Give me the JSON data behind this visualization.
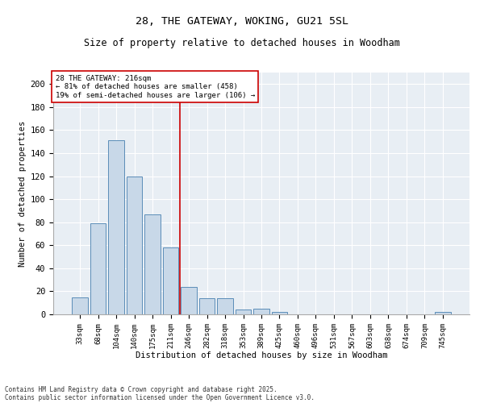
{
  "title": "28, THE GATEWAY, WOKING, GU21 5SL",
  "subtitle": "Size of property relative to detached houses in Woodham",
  "xlabel": "Distribution of detached houses by size in Woodham",
  "ylabel": "Number of detached properties",
  "bar_labels": [
    "33sqm",
    "68sqm",
    "104sqm",
    "140sqm",
    "175sqm",
    "211sqm",
    "246sqm",
    "282sqm",
    "318sqm",
    "353sqm",
    "389sqm",
    "425sqm",
    "460sqm",
    "496sqm",
    "531sqm",
    "567sqm",
    "603sqm",
    "638sqm",
    "674sqm",
    "709sqm",
    "745sqm"
  ],
  "bar_values": [
    15,
    79,
    151,
    120,
    87,
    58,
    24,
    14,
    14,
    4,
    5,
    2,
    0,
    0,
    0,
    0,
    0,
    0,
    0,
    0,
    2
  ],
  "bar_color": "#c8d8e8",
  "bar_edgecolor": "#5b8db8",
  "vline_x": 5.5,
  "vline_color": "#cc0000",
  "annotation_text": "28 THE GATEWAY: 216sqm\n← 81% of detached houses are smaller (458)\n19% of semi-detached houses are larger (106) →",
  "annotation_box_color": "#ffffff",
  "annotation_box_edgecolor": "#cc0000",
  "footnote1": "Contains HM Land Registry data © Crown copyright and database right 2025.",
  "footnote2": "Contains public sector information licensed under the Open Government Licence v3.0.",
  "bg_color": "#e8eef4",
  "ylim": [
    0,
    210
  ],
  "yticks": [
    0,
    20,
    40,
    60,
    80,
    100,
    120,
    140,
    160,
    180,
    200
  ]
}
